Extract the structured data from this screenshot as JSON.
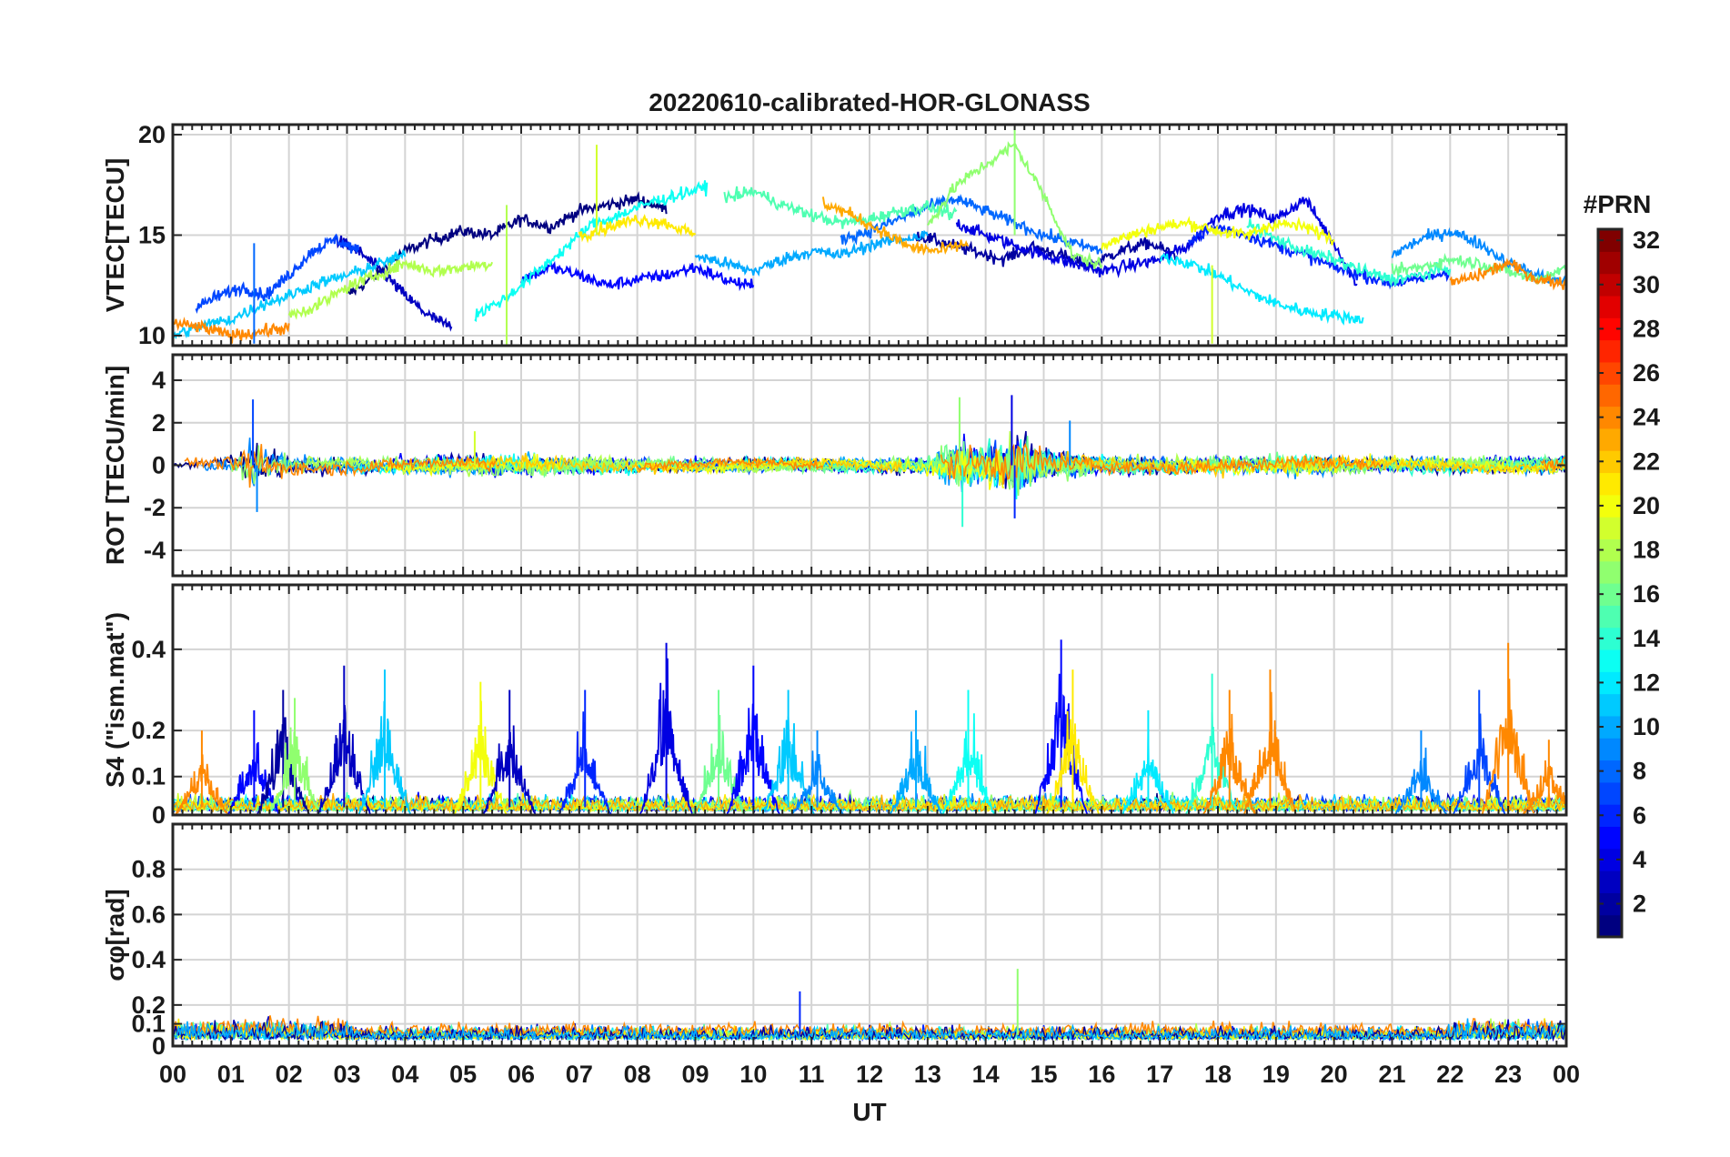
{
  "figure": {
    "title": "20220610-calibrated-HOR-GLONASS",
    "xlabel": "UT",
    "colorbar": {
      "label": "#PRN",
      "range": [
        1,
        32
      ],
      "ticks": [
        2,
        4,
        6,
        8,
        10,
        12,
        14,
        16,
        18,
        20,
        22,
        24,
        26,
        28,
        30,
        32
      ],
      "tick_labels": [
        "2",
        "4",
        "6",
        "8",
        "10",
        "12",
        "14",
        "16",
        "18",
        "20",
        "22",
        "24",
        "26",
        "28",
        "30",
        "32"
      ],
      "colormap": "jet"
    }
  },
  "chart_data": [
    {
      "type": "line",
      "panel": "vtec",
      "title": "20220610-calibrated-HOR-GLONASS",
      "xlabel": "",
      "ylabel": "VTEC[TECU]",
      "xlim": [
        0,
        24
      ],
      "ylim": [
        9.5,
        20.5
      ],
      "xticks": [
        0,
        1,
        2,
        3,
        4,
        5,
        6,
        7,
        8,
        9,
        10,
        11,
        12,
        13,
        14,
        15,
        16,
        17,
        18,
        19,
        20,
        21,
        22,
        23,
        24
      ],
      "yticks": [
        10,
        15,
        20
      ],
      "ytick_labels": [
        "10",
        "15",
        "20"
      ],
      "grid": true,
      "series": [
        {
          "prn": 1,
          "x": [
            3.0,
            3.5,
            4.0,
            4.5,
            5.0,
            5.5,
            6.0,
            6.5,
            7.0,
            7.5,
            8.0,
            8.5
          ],
          "y": [
            12.0,
            13.0,
            14.2,
            14.8,
            15.2,
            15.0,
            15.8,
            15.4,
            16.2,
            16.5,
            16.8,
            16.3
          ]
        },
        {
          "prn": 2,
          "x": [
            12.8,
            13.3,
            13.8,
            14.3,
            14.8,
            15.3,
            15.8,
            16.3,
            16.8,
            17.3
          ],
          "y": [
            15.0,
            14.6,
            14.2,
            13.8,
            14.4,
            14.0,
            13.5,
            14.2,
            14.6,
            14.0
          ]
        },
        {
          "prn": 3,
          "x": [
            2.8,
            3.2,
            3.6,
            4.0,
            4.4,
            4.8
          ],
          "y": [
            14.8,
            14.2,
            13.2,
            12.0,
            11.0,
            10.4
          ]
        },
        {
          "prn": 4,
          "x": [
            13.5,
            14.0,
            14.5,
            15.0,
            15.5,
            16.0,
            16.5,
            17.0,
            17.5,
            18.0,
            18.5,
            19.0,
            19.5,
            20.0,
            20.4
          ],
          "y": [
            15.6,
            15.0,
            14.5,
            14.0,
            13.6,
            13.2,
            13.5,
            13.8,
            14.5,
            16.0,
            16.3,
            15.8,
            16.8,
            14.6,
            12.5
          ]
        },
        {
          "prn": 5,
          "x": [
            6.0,
            6.5,
            7.0,
            7.5,
            8.0,
            8.5,
            9.0,
            9.5,
            10.0
          ],
          "y": [
            12.8,
            13.4,
            13.0,
            12.5,
            12.8,
            13.0,
            13.4,
            12.8,
            12.4
          ]
        },
        {
          "prn": 6,
          "x": [
            17.5,
            18.0,
            18.5,
            19.0,
            19.5,
            20.0,
            20.5,
            21.0,
            21.5,
            22.0
          ],
          "y": [
            14.8,
            15.4,
            15.0,
            14.5,
            14.0,
            13.4,
            13.0,
            12.6,
            12.8,
            13.2
          ]
        },
        {
          "prn": 7,
          "x": [
            0.4,
            0.8,
            1.2,
            1.6,
            2.0,
            2.4,
            2.8,
            3.2
          ],
          "y": [
            11.4,
            12.0,
            12.4,
            12.0,
            13.0,
            14.2,
            14.8,
            14.2
          ]
        },
        {
          "prn": 8,
          "x": [
            11.5,
            12.0,
            12.5,
            13.0,
            13.5,
            14.0,
            14.5,
            15.0,
            15.5,
            16.0
          ],
          "y": [
            14.8,
            15.2,
            15.8,
            16.4,
            16.8,
            16.2,
            15.6,
            15.0,
            14.6,
            14.2
          ]
        },
        {
          "prn": 9,
          "x": [
            21.0,
            21.5,
            22.0,
            22.5,
            23.0,
            23.5,
            24.0
          ],
          "y": [
            14.0,
            14.8,
            15.2,
            14.6,
            13.6,
            13.0,
            12.6
          ]
        },
        {
          "prn": 10,
          "x": [
            9.0,
            9.5,
            10.0,
            10.5,
            11.0,
            11.5,
            12.0,
            12.5,
            13.0
          ],
          "y": [
            14.0,
            13.6,
            13.2,
            13.8,
            14.2,
            14.0,
            14.5,
            14.8,
            15.0
          ]
        },
        {
          "prn": 11,
          "x": [
            0.0,
            0.5,
            1.0,
            1.5,
            2.0,
            2.5,
            3.0,
            3.5,
            4.0
          ],
          "y": [
            10.0,
            10.5,
            10.8,
            11.5,
            12.0,
            12.6,
            13.0,
            13.5,
            14.0
          ]
        },
        {
          "prn": 12,
          "x": [
            17.0,
            17.5,
            18.0,
            18.5,
            19.0,
            19.5,
            20.0,
            20.5
          ],
          "y": [
            14.0,
            13.6,
            13.0,
            12.2,
            11.6,
            11.2,
            11.0,
            10.8
          ]
        },
        {
          "prn": 13,
          "x": [
            5.2,
            5.7,
            6.2,
            6.7,
            7.2,
            7.7,
            8.2,
            8.7,
            9.2
          ],
          "y": [
            11.0,
            11.8,
            13.0,
            14.2,
            15.5,
            16.0,
            16.6,
            17.0,
            17.4
          ]
        },
        {
          "prn": 14,
          "x": [
            18.5,
            19.0,
            19.5,
            20.0,
            20.5,
            21.0,
            21.5,
            22.0
          ],
          "y": [
            15.6,
            14.8,
            14.2,
            13.8,
            13.2,
            12.8,
            13.0,
            13.4
          ]
        },
        {
          "prn": 15,
          "x": [
            9.5,
            10.0,
            10.5,
            11.0,
            11.5,
            12.0,
            12.5,
            13.0,
            13.5
          ],
          "y": [
            16.8,
            17.2,
            16.5,
            16.0,
            15.6,
            15.8,
            16.2,
            16.4,
            16.0
          ]
        },
        {
          "prn": 16,
          "x": [
            21.0,
            21.5,
            22.0,
            22.5,
            23.0,
            23.5,
            24.0
          ],
          "y": [
            13.2,
            13.4,
            13.8,
            13.6,
            13.2,
            12.8,
            13.4
          ]
        },
        {
          "prn": 17,
          "x": [
            13.0,
            13.5,
            14.0,
            14.5,
            15.0,
            15.5,
            16.0
          ],
          "y": [
            15.5,
            17.5,
            18.5,
            19.5,
            17.0,
            14.0,
            13.5
          ]
        },
        {
          "prn": 18,
          "x": [
            2.0,
            2.5,
            3.0,
            3.5,
            4.0,
            4.5,
            5.0,
            5.5
          ],
          "y": [
            11.0,
            11.5,
            12.4,
            13.0,
            13.6,
            13.2,
            13.4,
            13.6
          ]
        },
        {
          "prn": 20,
          "x": [
            16.0,
            16.5,
            17.0,
            17.5,
            18.0,
            18.5,
            19.0,
            19.5,
            20.0
          ],
          "y": [
            14.5,
            15.0,
            15.4,
            15.6,
            15.2,
            15.0,
            15.6,
            15.4,
            14.8
          ]
        },
        {
          "prn": 21,
          "x": [
            7.0,
            7.5,
            8.0,
            8.5,
            9.0
          ],
          "y": [
            15.0,
            15.4,
            15.8,
            15.6,
            15.0
          ]
        },
        {
          "prn": 23,
          "x": [
            11.2,
            11.7,
            12.2,
            12.7,
            13.2,
            13.7
          ],
          "y": [
            16.6,
            16.0,
            15.2,
            14.4,
            14.2,
            14.6
          ]
        },
        {
          "prn": 24,
          "x": [
            0.0,
            0.5,
            1.0,
            1.5,
            2.0
          ],
          "y": [
            10.6,
            10.4,
            10.0,
            10.2,
            10.4
          ]
        },
        {
          "prn": 24,
          "x": [
            22.0,
            22.5,
            23.0,
            23.5,
            24.0
          ],
          "y": [
            12.6,
            13.0,
            13.6,
            12.8,
            12.6
          ]
        }
      ]
    },
    {
      "type": "line",
      "panel": "rot",
      "xlabel": "",
      "ylabel": "ROT [TECU/min]",
      "xlim": [
        0,
        24
      ],
      "ylim": [
        -5.2,
        5.2
      ],
      "xticks": [
        0,
        1,
        2,
        3,
        4,
        5,
        6,
        7,
        8,
        9,
        10,
        11,
        12,
        13,
        14,
        15,
        16,
        17,
        18,
        19,
        20,
        21,
        22,
        23,
        24
      ],
      "yticks": [
        -4,
        -2,
        0,
        2,
        4
      ],
      "ytick_labels": [
        "-4",
        "-2",
        "0",
        "2",
        "4"
      ],
      "grid": true,
      "envelope": {
        "x": [
          0,
          1,
          1.4,
          2,
          3,
          4,
          5,
          6,
          7,
          8,
          9,
          10,
          11,
          12,
          13,
          13.5,
          14,
          14.5,
          15,
          15.5,
          16,
          17,
          18,
          19,
          20,
          21,
          22,
          23,
          24
        ],
        "amp": [
          0.2,
          0.4,
          1.5,
          0.5,
          0.4,
          0.4,
          0.5,
          0.5,
          0.4,
          0.35,
          0.3,
          0.3,
          0.25,
          0.3,
          0.5,
          1.2,
          1.0,
          1.6,
          0.9,
          0.6,
          0.4,
          0.4,
          0.45,
          0.5,
          0.45,
          0.35,
          0.35,
          0.4,
          0.4
        ]
      },
      "peaks": [
        {
          "x": 1.38,
          "y": 3.1
        },
        {
          "x": 1.45,
          "y": -2.2
        },
        {
          "x": 13.55,
          "y": 3.2
        },
        {
          "x": 13.6,
          "y": -2.9
        },
        {
          "x": 14.45,
          "y": 3.3
        },
        {
          "x": 14.5,
          "y": -2.5
        },
        {
          "x": 15.45,
          "y": 2.1
        },
        {
          "x": 5.2,
          "y": 1.6
        }
      ]
    },
    {
      "type": "line",
      "panel": "s4",
      "xlabel": "",
      "ylabel": "S4 (\"ism.mat\")",
      "xlim": [
        0,
        24
      ],
      "ylim": [
        0,
        0.6
      ],
      "yscale": "piecewise",
      "yticks": [
        0,
        0.1,
        0.2,
        0.4
      ],
      "ytick_labels": [
        "0",
        "0.1",
        "0.2",
        "0.4"
      ],
      "grid": true,
      "bursts": [
        {
          "x": 0.5,
          "peak": 0.2
        },
        {
          "x": 1.4,
          "peak": 0.25
        },
        {
          "x": 1.9,
          "peak": 0.3
        },
        {
          "x": 2.1,
          "peak": 0.28
        },
        {
          "x": 2.95,
          "peak": 0.36
        },
        {
          "x": 3.65,
          "peak": 0.35
        },
        {
          "x": 5.3,
          "peak": 0.32
        },
        {
          "x": 5.8,
          "peak": 0.3
        },
        {
          "x": 7.1,
          "peak": 0.3
        },
        {
          "x": 8.5,
          "peak": 0.42
        },
        {
          "x": 9.4,
          "peak": 0.3
        },
        {
          "x": 10.0,
          "peak": 0.36
        },
        {
          "x": 10.6,
          "peak": 0.3
        },
        {
          "x": 11.1,
          "peak": 0.2
        },
        {
          "x": 12.8,
          "peak": 0.25
        },
        {
          "x": 13.7,
          "peak": 0.3
        },
        {
          "x": 15.3,
          "peak": 0.43
        },
        {
          "x": 15.5,
          "peak": 0.35
        },
        {
          "x": 16.8,
          "peak": 0.25
        },
        {
          "x": 17.9,
          "peak": 0.34
        },
        {
          "x": 18.2,
          "peak": 0.3
        },
        {
          "x": 18.9,
          "peak": 0.35
        },
        {
          "x": 21.5,
          "peak": 0.2
        },
        {
          "x": 22.5,
          "peak": 0.3
        },
        {
          "x": 23.0,
          "peak": 0.42
        },
        {
          "x": 23.7,
          "peak": 0.18
        }
      ]
    },
    {
      "type": "line",
      "panel": "sigma_phi",
      "xlabel": "UT",
      "ylabel": "σφ[rad]",
      "xlim": [
        0,
        24
      ],
      "ylim": [
        0,
        1
      ],
      "yticks": [
        0,
        0.1,
        0.2,
        0.4,
        0.6,
        0.8
      ],
      "ytick_labels": [
        "0",
        "0.1",
        "0.2",
        "0.4",
        "0.6",
        "0.8"
      ],
      "xticks": [
        0,
        1,
        2,
        3,
        4,
        5,
        6,
        7,
        8,
        9,
        10,
        11,
        12,
        13,
        14,
        15,
        16,
        17,
        18,
        19,
        20,
        21,
        22,
        23,
        24
      ],
      "xtick_labels": [
        "00",
        "01",
        "02",
        "03",
        "04",
        "05",
        "06",
        "07",
        "08",
        "09",
        "10",
        "11",
        "12",
        "13",
        "14",
        "15",
        "16",
        "17",
        "18",
        "19",
        "20",
        "21",
        "22",
        "23",
        "00"
      ],
      "grid": true,
      "typical_range": [
        0.02,
        0.18
      ],
      "peaks": [
        {
          "x": 10.8,
          "y": 0.26
        },
        {
          "x": 14.55,
          "y": 0.36
        }
      ]
    }
  ]
}
